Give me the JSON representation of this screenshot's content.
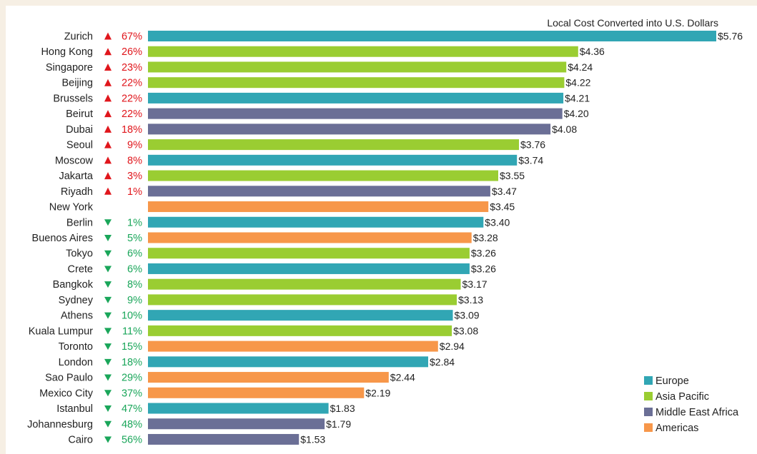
{
  "chart_data": {
    "type": "bar",
    "orientation": "horizontal",
    "title": "Local Cost Converted into U.S. Dollars",
    "xlim": [
      0,
      5.76
    ],
    "grid": false,
    "legend_position": "bottom-right",
    "regions": [
      {
        "name": "Europe",
        "color": "#31a6b4"
      },
      {
        "name": "Asia Pacific",
        "color": "#9acd32"
      },
      {
        "name": "Middle East Africa",
        "color": "#6b6f96"
      },
      {
        "name": "Americas",
        "color": "#f7974a"
      }
    ],
    "bars": [
      {
        "city": "Zurich",
        "change_dir": "up",
        "change": "67%",
        "value": 5.76,
        "label": "$5.76",
        "region": "Europe"
      },
      {
        "city": "Hong Kong",
        "change_dir": "up",
        "change": "26%",
        "value": 4.36,
        "label": "$4.36",
        "region": "Asia Pacific"
      },
      {
        "city": "Singapore",
        "change_dir": "up",
        "change": "23%",
        "value": 4.24,
        "label": "$4.24",
        "region": "Asia Pacific"
      },
      {
        "city": "Beijing",
        "change_dir": "up",
        "change": "22%",
        "value": 4.22,
        "label": "$4.22",
        "region": "Asia Pacific"
      },
      {
        "city": "Brussels",
        "change_dir": "up",
        "change": "22%",
        "value": 4.21,
        "label": "$4.21",
        "region": "Europe"
      },
      {
        "city": "Beirut",
        "change_dir": "up",
        "change": "22%",
        "value": 4.2,
        "label": "$4.20",
        "region": "Middle East Africa"
      },
      {
        "city": "Dubai",
        "change_dir": "up",
        "change": "18%",
        "value": 4.08,
        "label": "$4.08",
        "region": "Middle East Africa"
      },
      {
        "city": "Seoul",
        "change_dir": "up",
        "change": "9%",
        "value": 3.76,
        "label": "$3.76",
        "region": "Asia Pacific"
      },
      {
        "city": "Moscow",
        "change_dir": "up",
        "change": "8%",
        "value": 3.74,
        "label": "$3.74",
        "region": "Europe"
      },
      {
        "city": "Jakarta",
        "change_dir": "up",
        "change": "3%",
        "value": 3.55,
        "label": "$3.55",
        "region": "Asia Pacific"
      },
      {
        "city": "Riyadh",
        "change_dir": "up",
        "change": "1%",
        "value": 3.47,
        "label": "$3.47",
        "region": "Middle East Africa"
      },
      {
        "city": "New York",
        "change_dir": "none",
        "change": "",
        "value": 3.45,
        "label": "$3.45",
        "region": "Americas"
      },
      {
        "city": "Berlin",
        "change_dir": "down",
        "change": "1%",
        "value": 3.4,
        "label": "$3.40",
        "region": "Europe"
      },
      {
        "city": "Buenos Aires",
        "change_dir": "down",
        "change": "5%",
        "value": 3.28,
        "label": "$3.28",
        "region": "Americas"
      },
      {
        "city": "Tokyo",
        "change_dir": "down",
        "change": "6%",
        "value": 3.26,
        "label": "$3.26",
        "region": "Asia Pacific"
      },
      {
        "city": "Crete",
        "change_dir": "down",
        "change": "6%",
        "value": 3.26,
        "label": "$3.26",
        "region": "Europe"
      },
      {
        "city": "Bangkok",
        "change_dir": "down",
        "change": "8%",
        "value": 3.17,
        "label": "$3.17",
        "region": "Asia Pacific"
      },
      {
        "city": "Sydney",
        "change_dir": "down",
        "change": "9%",
        "value": 3.13,
        "label": "$3.13",
        "region": "Asia Pacific"
      },
      {
        "city": "Athens",
        "change_dir": "down",
        "change": "10%",
        "value": 3.09,
        "label": "$3.09",
        "region": "Europe"
      },
      {
        "city": "Kuala Lumpur",
        "change_dir": "down",
        "change": "11%",
        "value": 3.08,
        "label": "$3.08",
        "region": "Asia Pacific"
      },
      {
        "city": "Toronto",
        "change_dir": "down",
        "change": "15%",
        "value": 2.94,
        "label": "$2.94",
        "region": "Americas"
      },
      {
        "city": "London",
        "change_dir": "down",
        "change": "18%",
        "value": 2.84,
        "label": "$2.84",
        "region": "Europe"
      },
      {
        "city": "Sao Paulo",
        "change_dir": "down",
        "change": "29%",
        "value": 2.44,
        "label": "$2.44",
        "region": "Americas"
      },
      {
        "city": "Mexico City",
        "change_dir": "down",
        "change": "37%",
        "value": 2.19,
        "label": "$2.19",
        "region": "Americas"
      },
      {
        "city": "Istanbul",
        "change_dir": "down",
        "change": "47%",
        "value": 1.83,
        "label": "$1.83",
        "region": "Europe"
      },
      {
        "city": "Johannesburg",
        "change_dir": "down",
        "change": "48%",
        "value": 1.79,
        "label": "$1.79",
        "region": "Middle East Africa"
      },
      {
        "city": "Cairo",
        "change_dir": "down",
        "change": "56%",
        "value": 1.53,
        "label": "$1.53",
        "region": "Middle East Africa"
      }
    ]
  }
}
